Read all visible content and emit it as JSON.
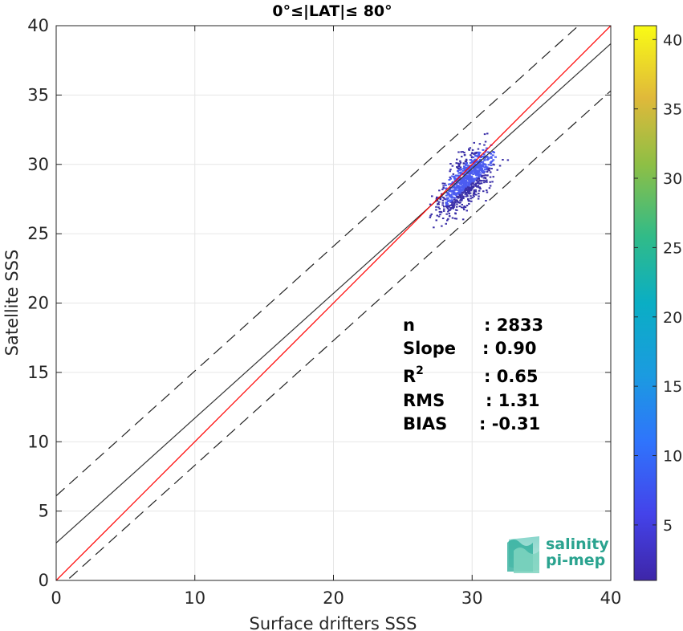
{
  "chart_data": {
    "type": "scatter",
    "title": "0°≤|LAT|≤ 80°",
    "xlabel": "Surface drifters SSS",
    "ylabel": "Satellite SSS",
    "xlim": [
      0,
      40
    ],
    "ylim": [
      0,
      40
    ],
    "xticks": [
      "0",
      "10",
      "20",
      "30",
      "40"
    ],
    "yticks": [
      "0",
      "5",
      "10",
      "15",
      "20",
      "25",
      "30",
      "35",
      "40"
    ],
    "grid": true,
    "lines": {
      "identity": {
        "slope": 1.0,
        "intercept": 0.0,
        "color": "#ff0000"
      },
      "fit": {
        "slope": 0.9,
        "intercept": 2.7,
        "color": "#333333"
      },
      "upper_bound": {
        "slope": 0.9,
        "intercept": 6.1,
        "dashed": true,
        "color": "#222222"
      },
      "lower_bound": {
        "slope": 0.9,
        "intercept": -0.7,
        "dashed": true,
        "color": "#222222"
      }
    },
    "density_cloud": {
      "color": "#3a2fa8",
      "highlight_color": "#4c5cf0",
      "x_range": [
        23.4,
        33.2
      ],
      "y_range": [
        22.1,
        34.5
      ],
      "center": [
        29.5,
        29.0
      ]
    },
    "colorbar": {
      "ticks": [
        "5",
        "10",
        "15",
        "20",
        "25",
        "30",
        "35",
        "40"
      ],
      "min": 1,
      "max": 41,
      "colormap": "parula"
    },
    "stats": [
      {
        "label": "n",
        "value": ": 2833"
      },
      {
        "label": "Slope",
        "value": ": 0.90"
      },
      {
        "label": "R",
        "sup": "2",
        "value": ": 0.65"
      },
      {
        "label": "RMS",
        "value": ": 1.31"
      },
      {
        "label": "BIAS",
        "value": ": -0.31"
      }
    ]
  },
  "logo": {
    "line1": "salinity",
    "line2": "pi-mep"
  }
}
